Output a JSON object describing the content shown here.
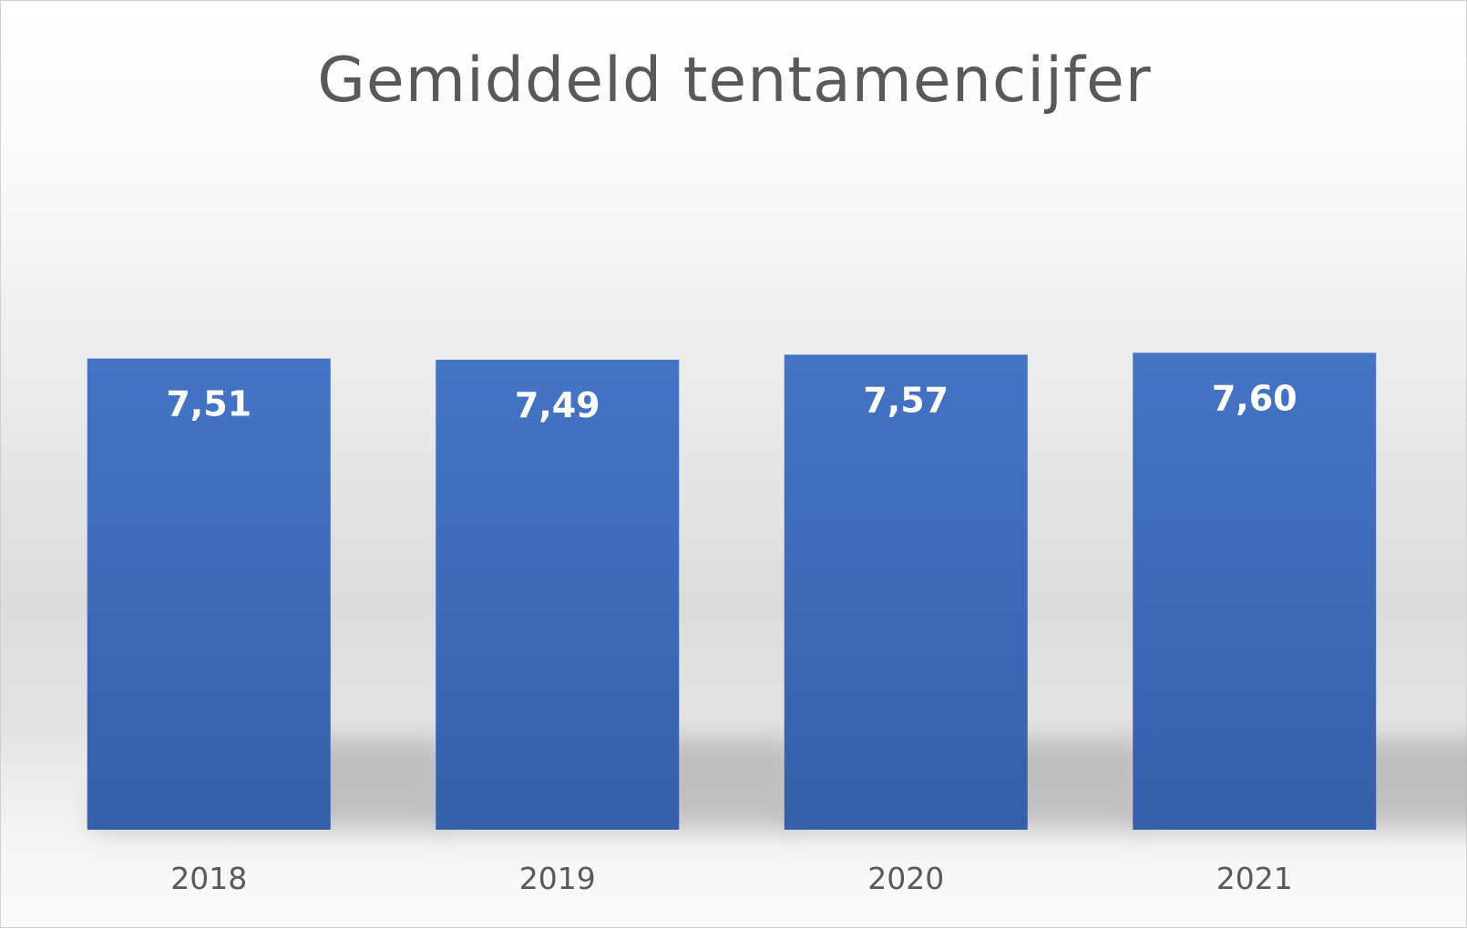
{
  "chart_data": {
    "type": "bar",
    "title": "Gemiddeld tentamencijfer",
    "categories": [
      "2018",
      "2019",
      "2020",
      "2021"
    ],
    "values": [
      7.51,
      7.49,
      7.57,
      7.6
    ],
    "data_labels": [
      "7,51",
      "7,49",
      "7,57",
      "7,60"
    ],
    "xlabel": "",
    "ylabel": "",
    "grid": false,
    "legend": "none",
    "colors": {
      "bar": "#4472c4",
      "bar_dark": "#3a5da8",
      "data_label": "#ffffff",
      "tick_label": "#595959",
      "title": "#595959"
    }
  }
}
